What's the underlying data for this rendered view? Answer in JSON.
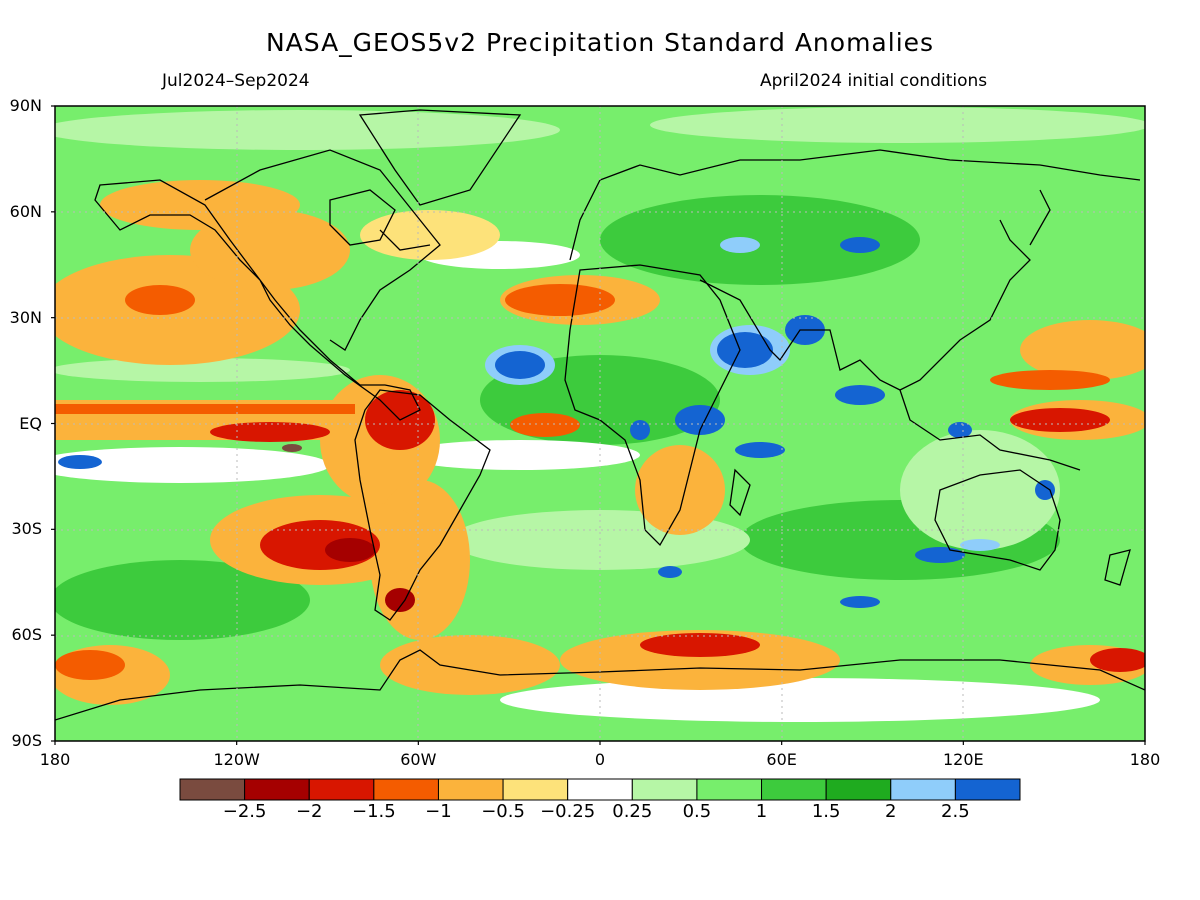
{
  "title": "NASA_GEOS5v2 Precipitation Standard Anomalies",
  "subtitle_left": "Jul2024–Sep2024",
  "subtitle_right": "April2024 initial conditions",
  "lat_labels": [
    "90N",
    "60N",
    "30N",
    "EQ",
    "30S",
    "60S",
    "90S"
  ],
  "lat_values": [
    90,
    60,
    30,
    0,
    -30,
    -60,
    -90
  ],
  "lon_labels": [
    "180",
    "120W",
    "60W",
    "0",
    "60E",
    "120E",
    "180"
  ],
  "lon_values": [
    -180,
    -120,
    -60,
    0,
    60,
    120,
    180
  ],
  "colorbar": {
    "colors": [
      "#7a4b3f",
      "#a50000",
      "#d81600",
      "#f45c00",
      "#fbb33c",
      "#fde27a",
      "#ffffff",
      "#b6f6a6",
      "#77ee6c",
      "#3dcb3d",
      "#1fab1f",
      "#8fcdfa",
      "#1464d2"
    ],
    "tick_labels": [
      "−2.5",
      "−2",
      "−1.5",
      "−1",
      "−0.5",
      "−0.25",
      "0.25",
      "0.5",
      "1",
      "1.5",
      "2",
      "2.5"
    ]
  },
  "colors": {
    "land_outline": "#000000",
    "background": "#77ee6c"
  }
}
